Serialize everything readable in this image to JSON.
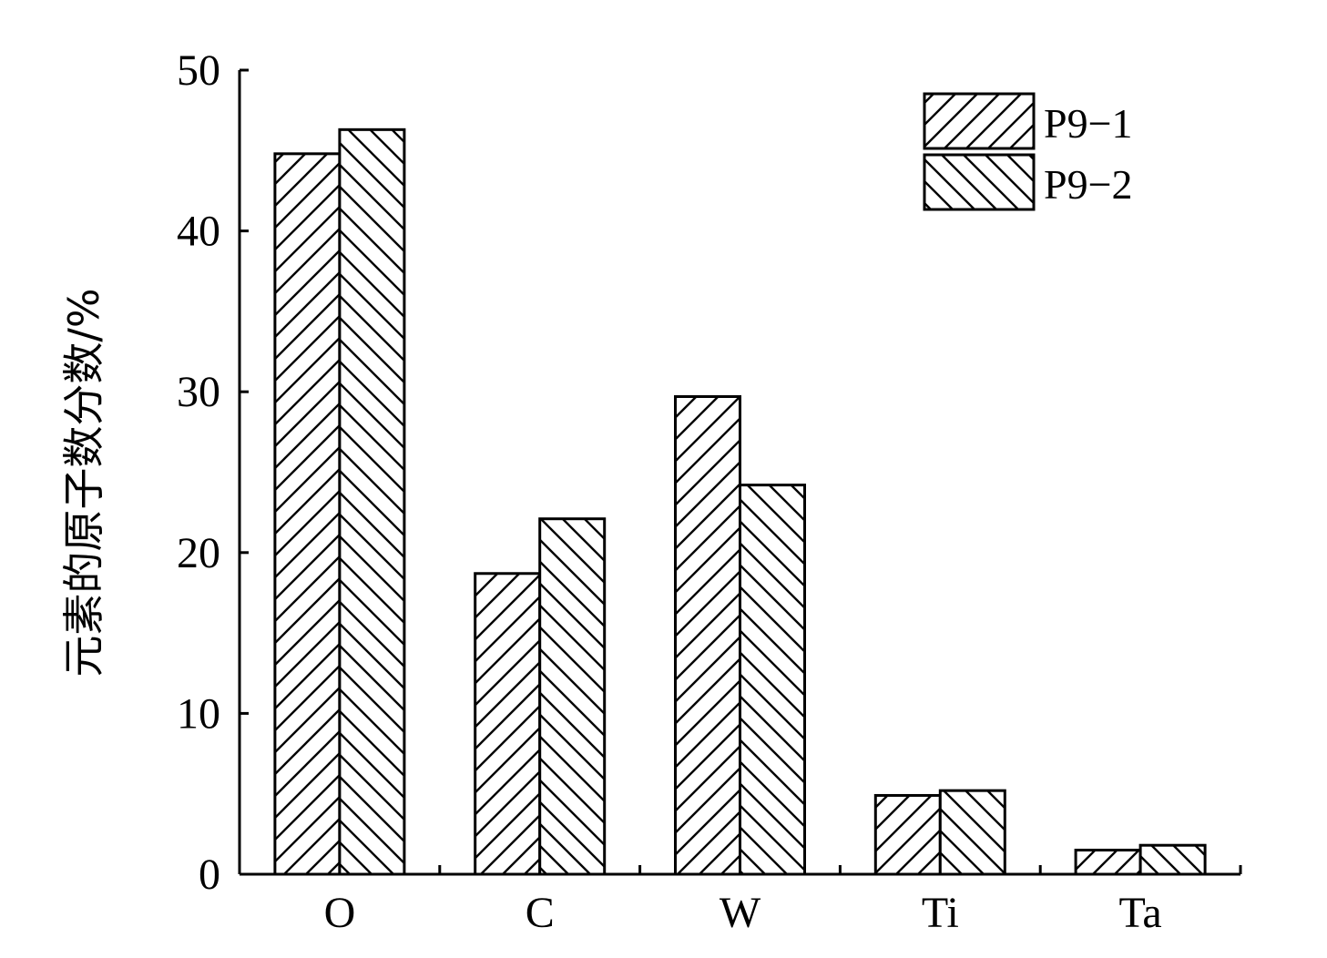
{
  "chart_data": {
    "type": "bar",
    "title": "",
    "xlabel": "",
    "ylabel": "元素的原子数分数/%",
    "categories": [
      "O",
      "C",
      "W",
      "Ti",
      "Ta"
    ],
    "series": [
      {
        "name": "P9−1",
        "pattern": "forward-diagonal-hatch",
        "values": [
          44.8,
          18.7,
          29.7,
          4.9,
          1.5
        ]
      },
      {
        "name": "P9−2",
        "pattern": "backward-diagonal-hatch",
        "values": [
          46.3,
          22.1,
          24.2,
          5.2,
          1.8
        ]
      }
    ],
    "ylim": [
      0,
      50
    ],
    "yticks": [
      "0",
      "10",
      "20",
      "30",
      "40",
      "50"
    ],
    "grid": false,
    "legend_position": "top-right",
    "colors": {
      "bar_fill": "#ffffff",
      "bar_stroke": "#000000",
      "hatch": "#000000"
    }
  }
}
